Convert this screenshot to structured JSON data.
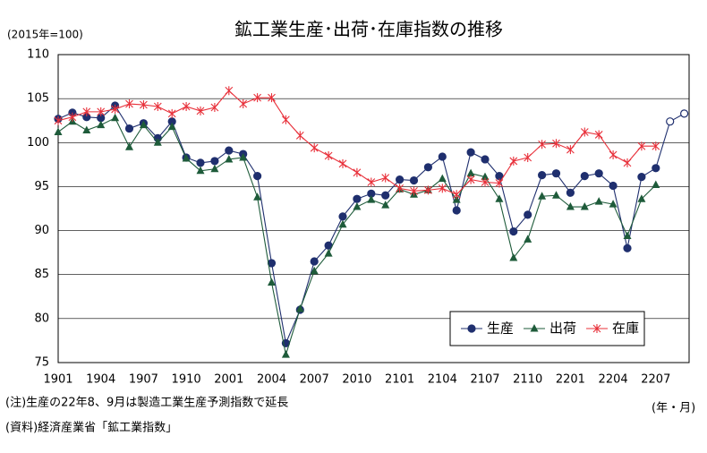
{
  "chart_data": {
    "type": "line",
    "title": "鉱工業生産･出荷･在庫指数の推移",
    "y_unit": "(2015年=100)",
    "x_unit": "(年・月)",
    "notes": [
      "(注)生産の22年8、9月は製造工業生産予測指数で延長",
      "(資料)経済産業省「鉱工業指数」"
    ],
    "categories": [
      "1901",
      null,
      null,
      "1904",
      null,
      null,
      "1907",
      null,
      null,
      "1910",
      null,
      null,
      "2001",
      null,
      null,
      "2004",
      null,
      null,
      "2007",
      null,
      null,
      "2010",
      null,
      null,
      "2101",
      null,
      null,
      "2104",
      null,
      null,
      "2107",
      null,
      null,
      "2110",
      null,
      null,
      "2201",
      null,
      null,
      "2204",
      null,
      null,
      "2207",
      null,
      null
    ],
    "series": [
      {
        "name": "生産",
        "color": "#1f2f6e",
        "marker": "circle",
        "open_markers_from": 43,
        "values": [
          102.7,
          103.4,
          102.9,
          102.8,
          104.2,
          101.6,
          102.2,
          100.5,
          102.4,
          98.3,
          97.7,
          97.9,
          99.1,
          98.7,
          96.2,
          86.3,
          77.2,
          81.0,
          86.5,
          88.3,
          91.6,
          93.6,
          94.2,
          94.0,
          95.8,
          95.7,
          97.2,
          98.4,
          92.3,
          98.9,
          98.1,
          96.2,
          89.9,
          91.8,
          96.3,
          96.5,
          94.3,
          96.2,
          96.5,
          95.1,
          88.0,
          96.1,
          97.1,
          102.4,
          103.3
        ]
      },
      {
        "name": "出荷",
        "color": "#1e5b3a",
        "marker": "triangle",
        "values": [
          101.2,
          102.4,
          101.4,
          102.0,
          102.8,
          99.5,
          102.0,
          100.0,
          101.8,
          98.2,
          96.8,
          97.0,
          98.1,
          98.3,
          93.8,
          84.1,
          75.9,
          81.1,
          85.4,
          87.4,
          90.7,
          92.7,
          93.5,
          92.9,
          94.7,
          94.1,
          94.6,
          95.9,
          93.5,
          96.5,
          96.1,
          93.6,
          86.9,
          89.0,
          93.9,
          94.0,
          92.7,
          92.7,
          93.3,
          93.0,
          89.4,
          93.6,
          95.2,
          null,
          null
        ]
      },
      {
        "name": "在庫",
        "color": "#e8303a",
        "marker": "star",
        "values": [
          102.5,
          102.9,
          103.5,
          103.5,
          103.8,
          104.4,
          104.3,
          104.1,
          103.3,
          104.1,
          103.6,
          104.0,
          105.9,
          104.4,
          105.1,
          105.1,
          102.6,
          100.8,
          99.4,
          98.5,
          97.6,
          96.6,
          95.5,
          96.0,
          94.8,
          94.5,
          94.6,
          94.8,
          94.1,
          95.8,
          95.5,
          95.4,
          97.9,
          98.3,
          99.8,
          99.9,
          99.2,
          101.2,
          100.9,
          98.6,
          97.7,
          99.6,
          99.6,
          null,
          null
        ]
      }
    ],
    "ylim": [
      75,
      110
    ],
    "yticks": [
      75,
      80,
      85,
      90,
      95,
      100,
      105,
      110
    ],
    "grid": true,
    "legend": "lower right"
  }
}
